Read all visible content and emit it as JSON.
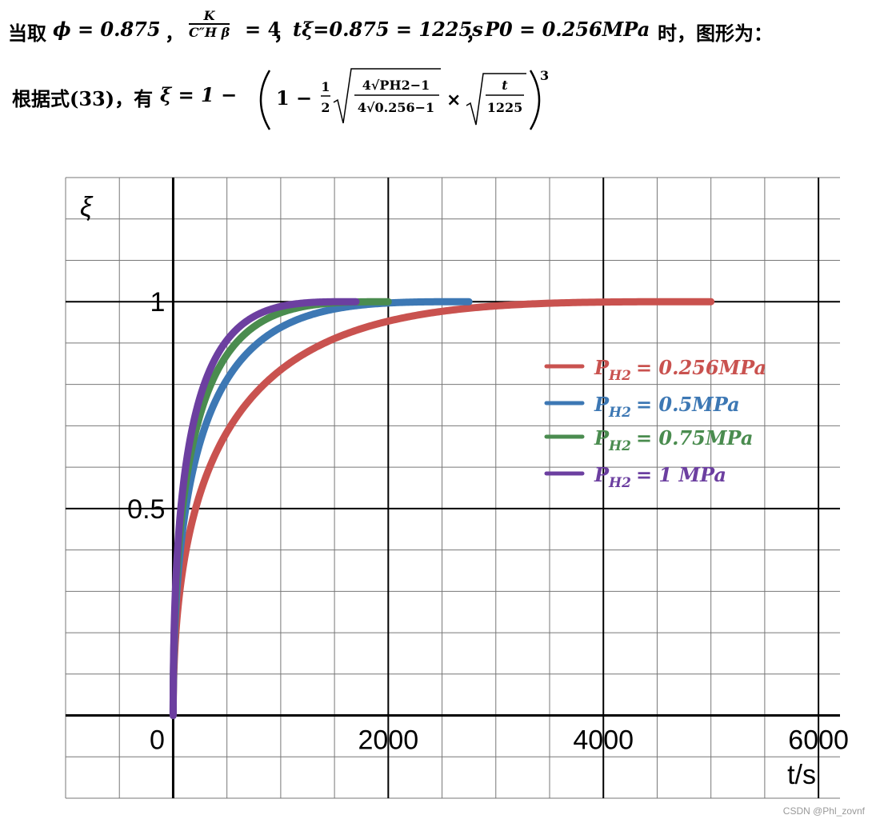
{
  "header": {
    "line1_prefix": "当取",
    "phi_eq": "ϕ = 0.875",
    "sep": "，",
    "frac_num": "K",
    "frac_den": "C″H β",
    "frac_eq": "= 4",
    "t_eq": "tξ=0.875 = 1225s",
    "p0_eq": "P0 = 0.256MPa",
    "line1_suffix": "时，图形为："
  },
  "formula": {
    "prefix": "根据式(33)，有",
    "lhs": "ξ = 1 −",
    "one_minus": "1 −",
    "half_num": "1",
    "half_den": "2",
    "inner_num": "4√PH2−1",
    "inner_den": "4√0.256−1",
    "times": "×",
    "t_num": "t",
    "t_den": "1225",
    "power": "3"
  },
  "chart_data": {
    "type": "line",
    "title": "",
    "xlabel": "t/s",
    "ylabel": "ξ",
    "xlim": [
      -1000,
      6200
    ],
    "ylim": [
      -0.2,
      1.3
    ],
    "x_ticks": [
      0,
      2000,
      4000,
      6000
    ],
    "y_ticks": [
      0.5,
      1
    ],
    "x_tick_labels": [
      "0",
      "2000",
      "4000",
      "6000"
    ],
    "y_tick_labels": [
      "0.5",
      "1"
    ],
    "grid": true,
    "legend_position": "right",
    "series": [
      {
        "name": "PH2 = 0.256MPa",
        "label": "P",
        "sub": "H2",
        "value": "= 0.256MPa",
        "color": "#c9524f",
        "P": 0.256,
        "t_end": 5000
      },
      {
        "name": "PH2 = 0.5MPa",
        "label": "P",
        "sub": "H2",
        "value": "= 0.5MPa",
        "color": "#3d78b4",
        "P": 0.5,
        "t_end": 2750
      },
      {
        "name": "PH2 = 0.75MPa",
        "label": "P",
        "sub": "H2",
        "value": "= 0.75MPa",
        "color": "#4a8c4f",
        "P": 0.75,
        "t_end": 2000
      },
      {
        "name": "PH2 = 1 MPa",
        "label": "P",
        "sub": "H2",
        "value": "= 1 MPa",
        "color": "#6c3fa0",
        "P": 1,
        "t_end": 1700
      }
    ],
    "t_ref": 1225,
    "P0": 0.256
  },
  "watermark": "CSDN @Phl_zovnf"
}
